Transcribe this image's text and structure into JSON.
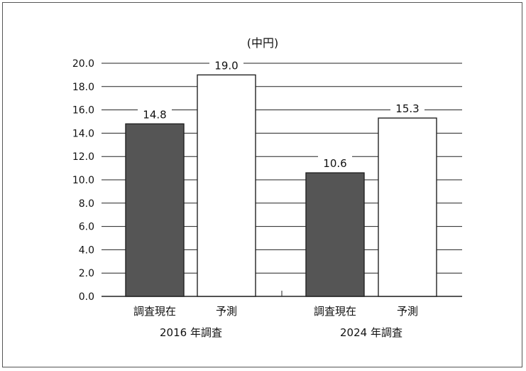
{
  "chart_data": {
    "type": "bar",
    "unit_label": "(中円)",
    "ylim": [
      0,
      20
    ],
    "yticks": [
      0,
      2,
      4,
      6,
      8,
      10,
      12,
      14,
      16,
      18,
      20
    ],
    "ytick_labels": [
      "0.0",
      "2.0",
      "4.0",
      "6.0",
      "8.0",
      "10.0",
      "12.0",
      "14.0",
      "16.0",
      "18.0",
      "20.0"
    ],
    "grid": true,
    "groups": [
      {
        "name": "2016 年調査",
        "bars": [
          {
            "label": "調査現在",
            "value": 14.8,
            "value_label": "14.8",
            "color": "#555555"
          },
          {
            "label": "予測",
            "value": 19.0,
            "value_label": "19.0",
            "color": "#ffffff"
          }
        ]
      },
      {
        "name": "2024 年調査",
        "bars": [
          {
            "label": "調査現在",
            "value": 10.6,
            "value_label": "10.6",
            "color": "#555555"
          },
          {
            "label": "予測",
            "value": 15.3,
            "value_label": "15.3",
            "color": "#ffffff"
          }
        ]
      }
    ]
  }
}
